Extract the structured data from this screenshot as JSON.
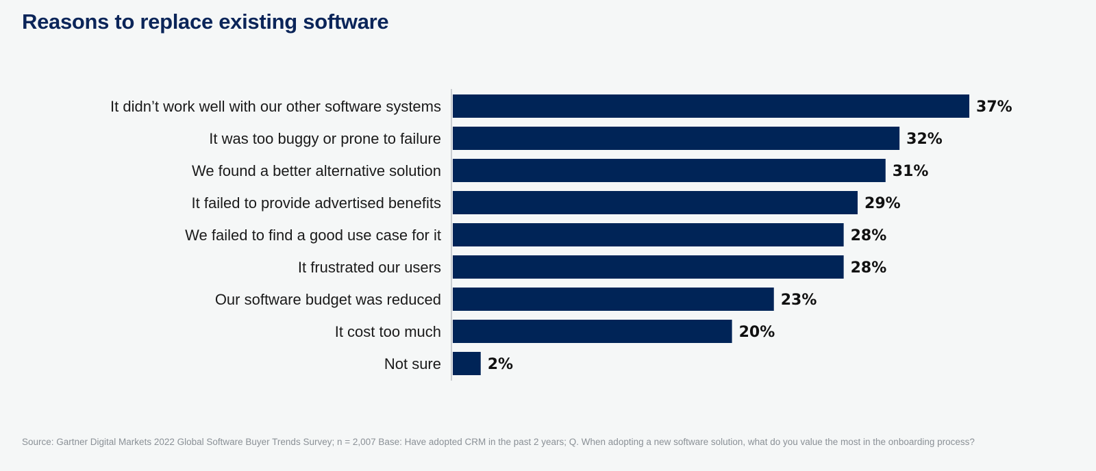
{
  "chart_data": {
    "type": "bar",
    "orientation": "horizontal",
    "title": "Reasons to replace existing software",
    "categories": [
      "It didn’t work well with our other software systems",
      "It was too buggy or prone to failure",
      "We found a better alternative solution",
      "It failed to provide advertised benefits",
      "We failed to find a good use case for it",
      "It frustrated our users",
      "Our software budget was reduced",
      "It cost too much",
      "Not sure"
    ],
    "values": [
      37,
      32,
      31,
      29,
      28,
      28,
      23,
      20,
      2
    ],
    "value_labels": [
      "37%",
      "32%",
      "31%",
      "29%",
      "28%",
      "28%",
      "23%",
      "20%",
      "2%"
    ],
    "unit": "%",
    "xlabel": "",
    "ylabel": "",
    "grid": false,
    "bar_color": "#002457"
  },
  "footer": {
    "source": "Source: Gartner Digital Markets 2022 Global Software Buyer Trends Survey; n = 2,007  Base: Have adopted CRM in the past 2 years; Q. When adopting a new software solution, what do you value the most in the onboarding process?"
  }
}
